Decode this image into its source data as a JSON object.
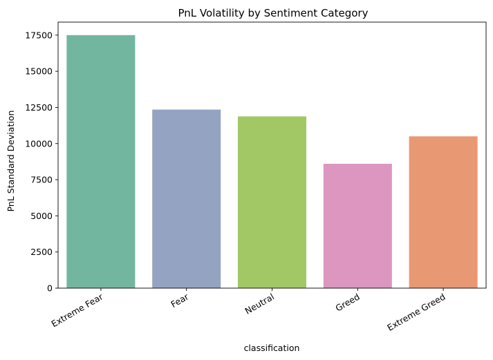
{
  "chart_data": {
    "type": "bar",
    "title": "PnL Volatility by Sentiment Category",
    "xlabel": "classification",
    "ylabel": "PnL Standard Deviation",
    "categories": [
      "Extreme Fear",
      "Fear",
      "Neutral",
      "Greed",
      "Extreme Greed"
    ],
    "values": [
      17500,
      12350,
      11880,
      8600,
      10500
    ],
    "colors": [
      "#73b6a0",
      "#95a3c3",
      "#a2c866",
      "#dc96c0",
      "#e99874"
    ],
    "ylim": [
      0,
      18400
    ],
    "yticks": [
      0,
      2500,
      5000,
      7500,
      10000,
      12500,
      15000,
      17500
    ],
    "ytick_labels": [
      "0",
      "2500",
      "5000",
      "7500",
      "10000",
      "12500",
      "15000",
      "17500"
    ],
    "xtick_rotation_deg": 30,
    "grid": false,
    "legend": "none"
  }
}
